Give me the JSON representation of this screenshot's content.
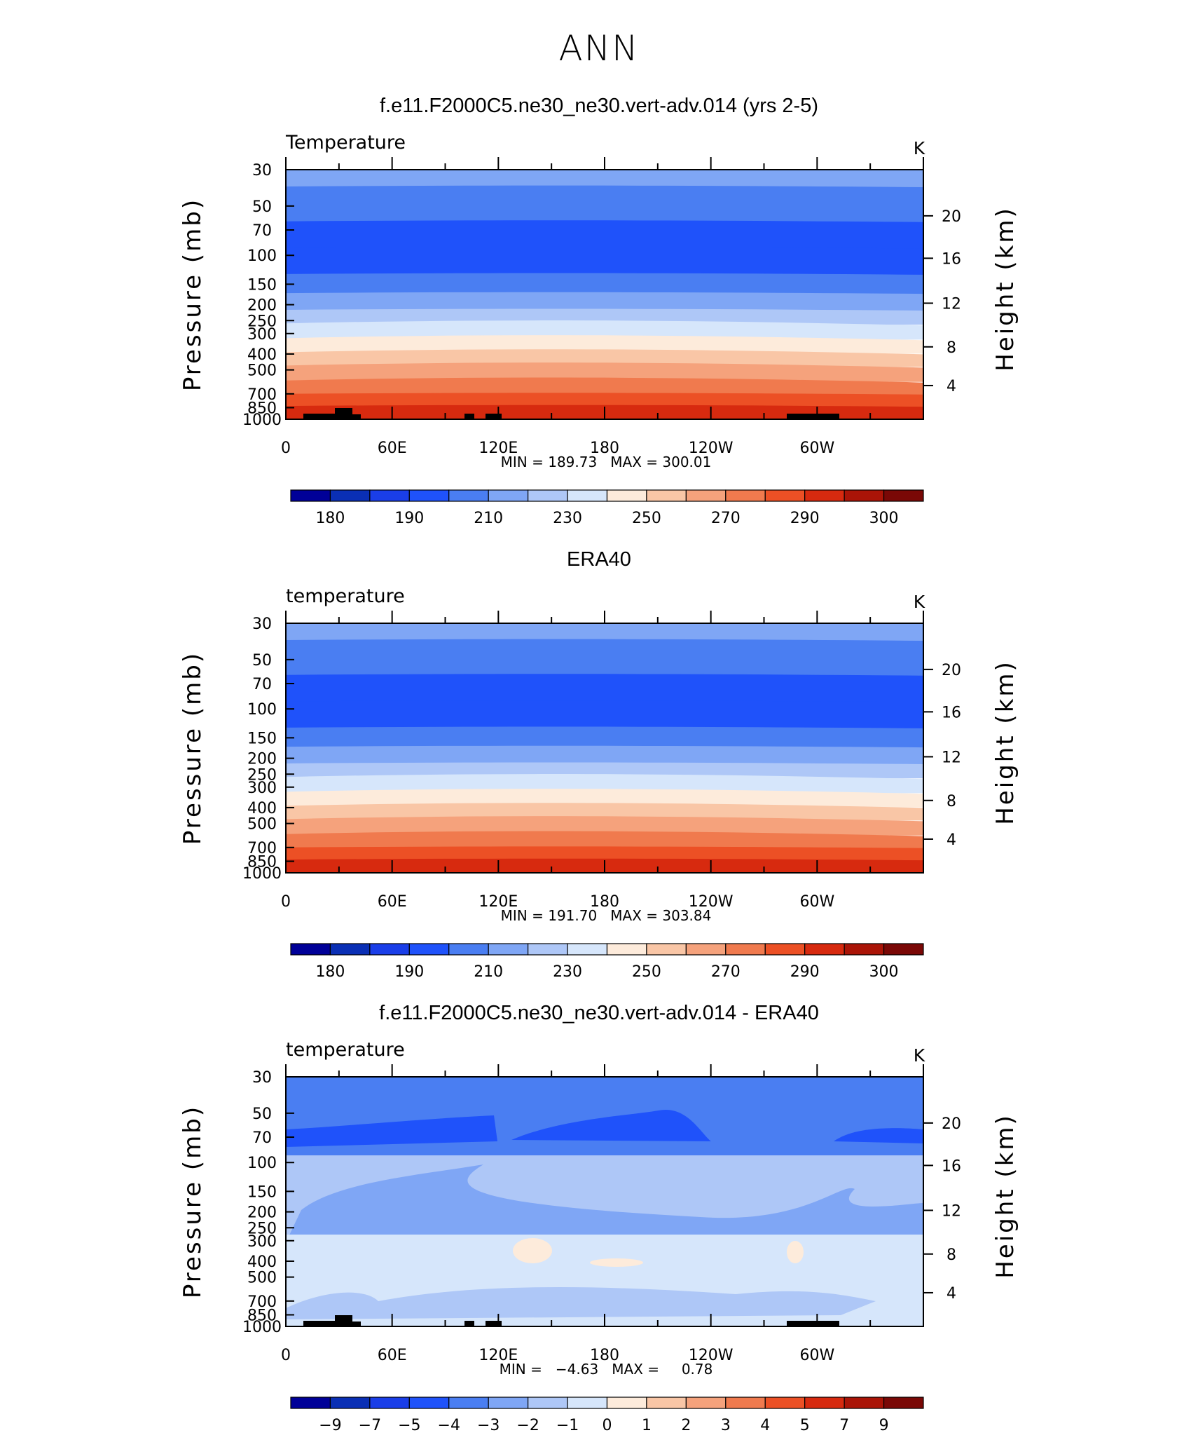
{
  "page": {
    "title": "ANN"
  },
  "chart_data": [
    {
      "type": "heatmap",
      "plot_type": "filled-contour",
      "title": "f.e11.F2000C5.ne30_ne30.vert-adv.014 (yrs 2-5)",
      "variable_label": "Temperature",
      "units": "K",
      "ylabel": "Pressure (mb)",
      "ylabel_right": "Height (km)",
      "x_ticks": [
        "0",
        "60E",
        "120E",
        "180",
        "120W",
        "60W"
      ],
      "y_ticks": [
        "30",
        "50",
        "70",
        "100",
        "150",
        "200",
        "250",
        "300",
        "400",
        "500",
        "700",
        "850",
        "1000"
      ],
      "y_ticks_right": [
        "20",
        "16",
        "12",
        "8",
        "4"
      ],
      "xlim": [
        "0",
        "360"
      ],
      "ylim": [
        1000,
        30
      ],
      "y_scale": "log",
      "stats": "MIN = 189.73   MAX = 300.01",
      "min": 189.73,
      "max": 300.01,
      "colorbar_labels": [
        "180",
        "190",
        "210",
        "230",
        "250",
        "270",
        "290",
        "300"
      ],
      "colorbar_colors": [
        "#000098",
        "#0a2fb5",
        "#1a3ee8",
        "#1f52fa",
        "#4a7ef2",
        "#7fa6f5",
        "#aec7f7",
        "#d6e6fb",
        "#fdebdb",
        "#f9c6a6",
        "#f5a27c",
        "#f07a4e",
        "#ec5025",
        "#d72a0f",
        "#aa1407",
        "#7a0806"
      ],
      "terrain": true
    },
    {
      "type": "heatmap",
      "plot_type": "filled-contour",
      "title": "ERA40",
      "variable_label": "temperature",
      "units": "K",
      "ylabel": "Pressure (mb)",
      "ylabel_right": "Height (km)",
      "x_ticks": [
        "0",
        "60E",
        "120E",
        "180",
        "120W",
        "60W"
      ],
      "y_ticks": [
        "30",
        "50",
        "70",
        "100",
        "150",
        "200",
        "250",
        "300",
        "400",
        "500",
        "700",
        "850",
        "1000"
      ],
      "y_ticks_right": [
        "20",
        "16",
        "12",
        "8",
        "4"
      ],
      "xlim": [
        "0",
        "360"
      ],
      "ylim": [
        1000,
        30
      ],
      "y_scale": "log",
      "stats": "MIN = 191.70   MAX = 303.84",
      "min": 191.7,
      "max": 303.84,
      "colorbar_labels": [
        "180",
        "190",
        "210",
        "230",
        "250",
        "270",
        "290",
        "300"
      ],
      "colorbar_colors": [
        "#000098",
        "#0a2fb5",
        "#1a3ee8",
        "#1f52fa",
        "#4a7ef2",
        "#7fa6f5",
        "#aec7f7",
        "#d6e6fb",
        "#fdebdb",
        "#f9c6a6",
        "#f5a27c",
        "#f07a4e",
        "#ec5025",
        "#d72a0f",
        "#aa1407",
        "#7a0806"
      ],
      "terrain": false
    },
    {
      "type": "heatmap",
      "plot_type": "filled-contour",
      "title": "f.e11.F2000C5.ne30_ne30.vert-adv.014 - ERA40",
      "variable_label": "temperature",
      "units": "K",
      "ylabel": "Pressure (mb)",
      "ylabel_right": "Height (km)",
      "x_ticks": [
        "0",
        "60E",
        "120E",
        "180",
        "120W",
        "60W"
      ],
      "y_ticks": [
        "30",
        "50",
        "70",
        "100",
        "150",
        "200",
        "250",
        "300",
        "400",
        "500",
        "700",
        "850",
        "1000"
      ],
      "y_ticks_right": [
        "20",
        "16",
        "12",
        "8",
        "4"
      ],
      "xlim": [
        "0",
        "360"
      ],
      "ylim": [
        1000,
        30
      ],
      "y_scale": "log",
      "stats": "MIN =   −4.63   MAX =     0.78",
      "min": -4.63,
      "max": 0.78,
      "colorbar_labels": [
        "−9",
        "−7",
        "−5",
        "−4",
        "−3",
        "−2",
        "−1",
        "0",
        "1",
        "2",
        "3",
        "4",
        "5",
        "7",
        "9"
      ],
      "colorbar_colors": [
        "#000098",
        "#0a2fb5",
        "#1a3ee8",
        "#1f52fa",
        "#4a7ef2",
        "#7fa6f5",
        "#aec7f7",
        "#d6e6fb",
        "#fdebdb",
        "#f9c6a6",
        "#f5a27c",
        "#f07a4e",
        "#ec5025",
        "#d72a0f",
        "#aa1407",
        "#7a0806"
      ],
      "terrain": true
    }
  ]
}
